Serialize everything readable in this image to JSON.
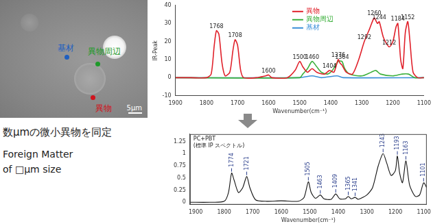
{
  "image": {
    "labels": [
      {
        "text": "基材",
        "color": "#1f5fc0"
      },
      {
        "text": "異物周辺",
        "color": "#1e9a2a"
      },
      {
        "text": "異物",
        "color": "#d0141e"
      }
    ],
    "scale_bar": "5μm"
  },
  "caption": [
    "数μmの微小異物を同定",
    "Foreign Matter",
    "of □μm size"
  ],
  "chart_data": [
    {
      "type": "line",
      "y_label": "IR-Peak",
      "x_label": "Wavenumber(cm⁻¹)",
      "xlim": [
        1900,
        1100
      ],
      "xticks": [
        1900,
        1800,
        1700,
        1600,
        1500,
        1400,
        1300,
        1200,
        1100
      ],
      "ylim": [
        -10,
        40
      ],
      "yticks": [
        -10,
        0,
        10,
        20,
        30,
        40
      ],
      "grid": false,
      "legend": "upper right",
      "series": [
        {
          "name": "異物",
          "color": "#e0202a",
          "x": [
            1900,
            1850,
            1800,
            1785,
            1775,
            1768,
            1760,
            1750,
            1740,
            1725,
            1715,
            1708,
            1700,
            1690,
            1680,
            1640,
            1610,
            1600,
            1590,
            1540,
            1515,
            1500,
            1490,
            1475,
            1460,
            1445,
            1420,
            1404,
            1390,
            1376,
            1370,
            1364,
            1350,
            1330,
            1310,
            1292,
            1275,
            1260,
            1250,
            1244,
            1230,
            1212,
            1200,
            1190,
            1184,
            1175,
            1168,
            1160,
            1152,
            1145,
            1135,
            1120,
            1100
          ],
          "values": [
            0,
            0,
            0,
            2,
            18,
            26,
            24,
            8,
            1,
            3,
            15,
            21,
            18,
            4,
            0,
            0,
            1,
            1.5,
            0,
            0,
            4,
            9,
            6,
            3,
            5,
            3,
            2,
            4,
            3,
            10,
            8,
            7,
            3,
            2,
            10,
            20,
            27,
            33,
            30,
            31,
            22,
            17,
            20,
            28,
            30,
            10,
            5,
            25,
            31,
            20,
            3,
            0,
            0
          ]
        },
        {
          "name": "異物周辺",
          "color": "#3cb03c",
          "x": [
            1900,
            1500,
            1490,
            1475,
            1460,
            1445,
            1430,
            1410,
            1395,
            1376,
            1364,
            1355,
            1340,
            1300,
            1270,
            1255,
            1240,
            1200,
            1170,
            1150,
            1130,
            1100
          ],
          "values": [
            0,
            0,
            2,
            5,
            9,
            6,
            3,
            2,
            4,
            9,
            9,
            5,
            2,
            1,
            3,
            4,
            2,
            1,
            2,
            2,
            0,
            0
          ]
        },
        {
          "name": "基材",
          "color": "#3a8fd8",
          "x": [
            1900,
            1500,
            1460,
            1430,
            1380,
            1360,
            1100
          ],
          "values": [
            0,
            0,
            1,
            0,
            1,
            0,
            0
          ]
        }
      ],
      "annotations": [
        {
          "x": 1768,
          "y": 26,
          "label": "1768"
        },
        {
          "x": 1708,
          "y": 21,
          "label": "1708"
        },
        {
          "x": 1600,
          "y": 1.5,
          "label": "1600"
        },
        {
          "x": 1500,
          "y": 9,
          "label": "1500"
        },
        {
          "x": 1460,
          "y": 9,
          "label": "1460"
        },
        {
          "x": 1404,
          "y": 4,
          "label": "1404"
        },
        {
          "x": 1376,
          "y": 10,
          "label": "1376"
        },
        {
          "x": 1364,
          "y": 9,
          "label": "1364"
        },
        {
          "x": 1292,
          "y": 20,
          "label": "1292"
        },
        {
          "x": 1260,
          "y": 33,
          "label": "1260"
        },
        {
          "x": 1244,
          "y": 31,
          "label": "1244"
        },
        {
          "x": 1212,
          "y": 17,
          "label": "1212"
        },
        {
          "x": 1184,
          "y": 30,
          "label": "1184"
        },
        {
          "x": 1152,
          "y": 31,
          "label": "1152"
        }
      ]
    },
    {
      "type": "line",
      "title": [
        "PC+PBT",
        "(標準 IP スペクトル)"
      ],
      "x_label": "Wavenumber(cm⁻¹)",
      "xlim": [
        1920,
        1090
      ],
      "xticks": [
        1900,
        1800,
        1700,
        1600,
        1500,
        1400,
        1300,
        1200,
        1100
      ],
      "ylim": [
        -0.05,
        1.4
      ],
      "yticks": [
        0,
        0.25,
        0.5,
        0.75,
        1,
        1.25
      ],
      "grid": false,
      "series": [
        {
          "name": "PC+PBT",
          "color": "#111111",
          "x": [
            1920,
            1850,
            1800,
            1785,
            1774,
            1765,
            1750,
            1735,
            1721,
            1710,
            1690,
            1650,
            1600,
            1540,
            1520,
            1505,
            1495,
            1480,
            1463,
            1450,
            1425,
            1409,
            1395,
            1375,
            1365,
            1355,
            1341,
            1330,
            1300,
            1280,
            1260,
            1243,
            1230,
            1215,
            1200,
            1193,
            1185,
            1175,
            1163,
            1150,
            1130,
            1115,
            1101,
            1090
          ],
          "values": [
            0,
            0,
            0.02,
            0.2,
            0.6,
            0.45,
            0.2,
            0.3,
            0.53,
            0.3,
            0.05,
            0.02,
            0.03,
            0.02,
            0.1,
            0.42,
            0.2,
            0.08,
            0.15,
            0.07,
            0.06,
            0.17,
            0.07,
            0.07,
            0.12,
            0.07,
            0.1,
            0.06,
            0.15,
            0.3,
            0.75,
            1.0,
            0.8,
            0.55,
            0.65,
            0.95,
            0.6,
            0.4,
            0.85,
            0.35,
            0.12,
            0.15,
            0.4,
            0.3
          ]
        }
      ],
      "annotations": [
        {
          "x": 1774,
          "y": 0.6,
          "label": "1774"
        },
        {
          "x": 1721,
          "y": 0.53,
          "label": "1721"
        },
        {
          "x": 1505,
          "y": 0.42,
          "label": "1505"
        },
        {
          "x": 1463,
          "y": 0.15,
          "label": "1463"
        },
        {
          "x": 1409,
          "y": 0.17,
          "label": "1409"
        },
        {
          "x": 1365,
          "y": 0.12,
          "label": "1365"
        },
        {
          "x": 1341,
          "y": 0.1,
          "label": "1341"
        },
        {
          "x": 1243,
          "y": 1.0,
          "label": "1243"
        },
        {
          "x": 1193,
          "y": 0.95,
          "label": "1193"
        },
        {
          "x": 1163,
          "y": 0.85,
          "label": "1163"
        },
        {
          "x": 1101,
          "y": 0.4,
          "label": "1101"
        }
      ]
    }
  ]
}
